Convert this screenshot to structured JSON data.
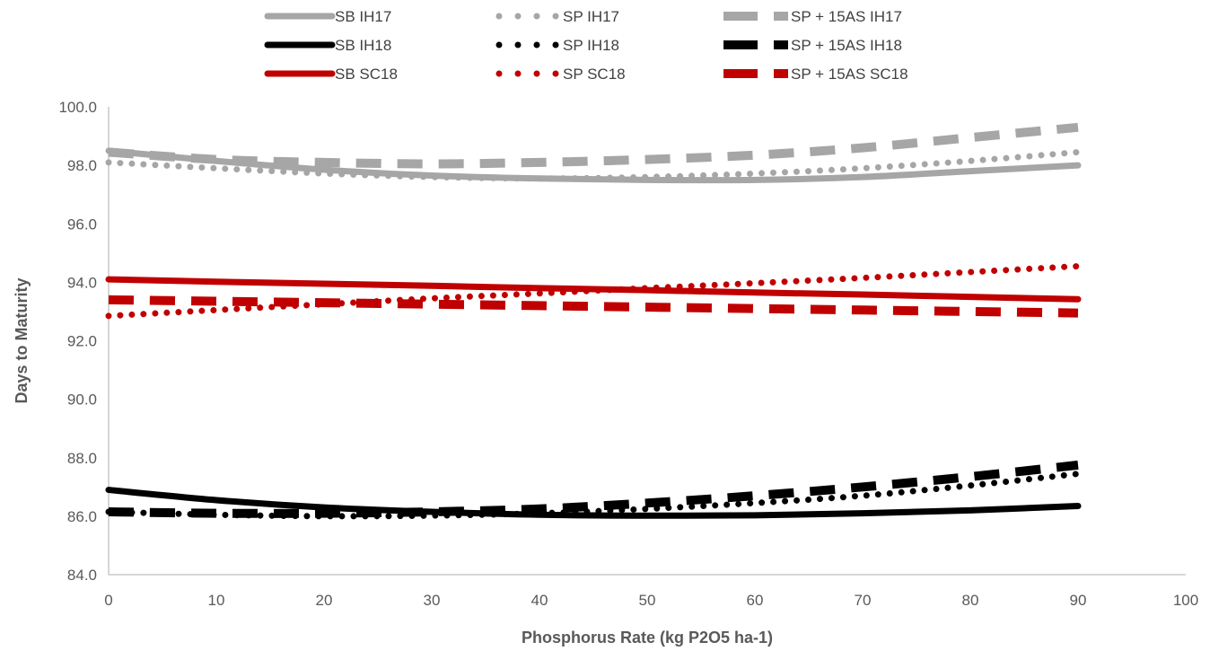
{
  "chart_data": {
    "type": "line",
    "title": "",
    "xlabel": "Phosphorus Rate (kg P2O5 ha-1)",
    "ylabel": "Days to Maturity",
    "xlim": [
      0,
      100
    ],
    "ylim": [
      84,
      100
    ],
    "x_ticks": [
      0,
      10,
      20,
      30,
      40,
      50,
      60,
      70,
      80,
      90,
      100
    ],
    "y_ticks": [
      84.0,
      86.0,
      88.0,
      90.0,
      92.0,
      94.0,
      96.0,
      98.0,
      100.0
    ],
    "x_tick_labels": [
      "0",
      "10",
      "20",
      "30",
      "40",
      "50",
      "60",
      "70",
      "80",
      "90",
      "100"
    ],
    "y_tick_labels": [
      "84.0",
      "86.0",
      "88.0",
      "90.0",
      "92.0",
      "94.0",
      "96.0",
      "98.0",
      "100.0"
    ],
    "grid": false,
    "legend_position": "top",
    "series": [
      {
        "name": "SB IH17",
        "color": "#a6a6a6",
        "style": "solid",
        "x": [
          0,
          10,
          20,
          30,
          40,
          50,
          60,
          70,
          80,
          90
        ],
        "y": [
          98.5,
          98.15,
          97.85,
          97.65,
          97.55,
          97.5,
          97.5,
          97.6,
          97.8,
          98.0
        ]
      },
      {
        "name": "SP IH17",
        "color": "#a6a6a6",
        "style": "dotted",
        "x": [
          0,
          10,
          20,
          30,
          40,
          50,
          60,
          70,
          80,
          90
        ],
        "y": [
          98.1,
          97.9,
          97.72,
          97.6,
          97.55,
          97.6,
          97.72,
          97.9,
          98.15,
          98.45
        ]
      },
      {
        "name": "SP + 15AS IH17",
        "color": "#a6a6a6",
        "style": "dashed",
        "x": [
          0,
          10,
          20,
          30,
          40,
          50,
          60,
          70,
          80,
          90
        ],
        "y": [
          98.45,
          98.2,
          98.1,
          98.05,
          98.1,
          98.2,
          98.35,
          98.6,
          98.95,
          99.3
        ]
      },
      {
        "name": "SB IH18",
        "color": "#000000",
        "style": "solid",
        "x": [
          0,
          10,
          20,
          30,
          40,
          50,
          60,
          70,
          80,
          90
        ],
        "y": [
          86.9,
          86.55,
          86.3,
          86.15,
          86.05,
          86.02,
          86.03,
          86.1,
          86.2,
          86.35
        ]
      },
      {
        "name": "SP IH18",
        "color": "#000000",
        "style": "dotted",
        "x": [
          0,
          10,
          20,
          30,
          40,
          50,
          60,
          70,
          80,
          90
        ],
        "y": [
          86.15,
          86.05,
          86.0,
          86.02,
          86.1,
          86.25,
          86.45,
          86.7,
          87.05,
          87.45
        ]
      },
      {
        "name": "SP + 15AS IH18",
        "color": "#000000",
        "style": "dashed",
        "x": [
          0,
          10,
          20,
          30,
          40,
          50,
          60,
          70,
          80,
          90
        ],
        "y": [
          86.15,
          86.1,
          86.1,
          86.15,
          86.25,
          86.45,
          86.7,
          87.0,
          87.35,
          87.75
        ]
      },
      {
        "name": "SB SC18",
        "color": "#c00000",
        "style": "solid",
        "x": [
          0,
          10,
          20,
          30,
          40,
          50,
          60,
          70,
          80,
          90
        ],
        "y": [
          94.1,
          94.02,
          93.95,
          93.88,
          93.8,
          93.73,
          93.65,
          93.58,
          93.5,
          93.42
        ]
      },
      {
        "name": "SP SC18",
        "color": "#c00000",
        "style": "dotted",
        "x": [
          0,
          10,
          20,
          30,
          40,
          50,
          60,
          70,
          80,
          90
        ],
        "y": [
          92.85,
          93.05,
          93.25,
          93.45,
          93.62,
          93.8,
          93.97,
          94.15,
          94.35,
          94.55
        ]
      },
      {
        "name": "SP + 15AS SC18",
        "color": "#c00000",
        "style": "dashed",
        "x": [
          0,
          10,
          20,
          30,
          40,
          50,
          60,
          70,
          80,
          90
        ],
        "y": [
          93.4,
          93.35,
          93.3,
          93.25,
          93.2,
          93.15,
          93.1,
          93.05,
          93.0,
          92.95
        ]
      }
    ]
  }
}
